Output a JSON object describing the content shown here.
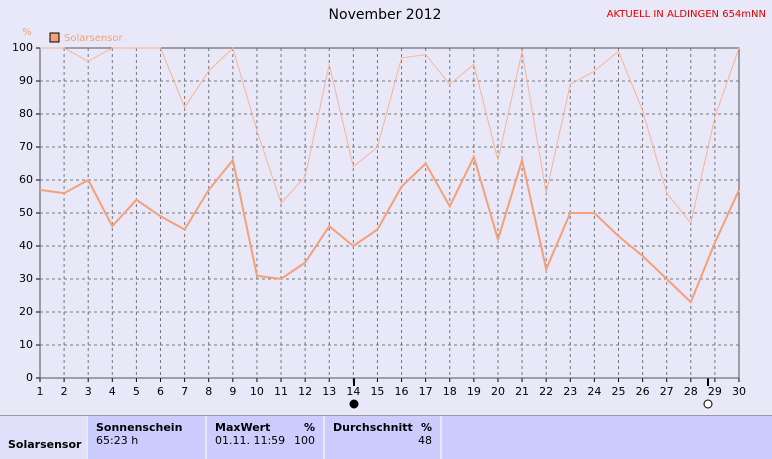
{
  "station_label": "AKTUELL IN ALDINGEN 654mNN",
  "chart_data": {
    "type": "line",
    "title": "November 2012",
    "y_label": "%",
    "x": [
      1,
      2,
      3,
      4,
      5,
      6,
      7,
      8,
      9,
      10,
      11,
      12,
      13,
      14,
      15,
      16,
      17,
      18,
      19,
      20,
      21,
      22,
      23,
      24,
      25,
      26,
      27,
      28,
      29,
      30
    ],
    "xlim": [
      1,
      30
    ],
    "xticks": [
      1,
      2,
      3,
      4,
      5,
      6,
      7,
      8,
      9,
      10,
      11,
      12,
      13,
      14,
      15,
      16,
      17,
      18,
      19,
      20,
      21,
      22,
      23,
      24,
      25,
      26,
      27,
      28,
      29,
      30
    ],
    "ylim": [
      0,
      100
    ],
    "yticks": [
      0,
      10,
      20,
      30,
      40,
      50,
      60,
      70,
      80,
      90,
      100
    ],
    "grid": true,
    "series": [
      {
        "name": "Solarsensor",
        "color": "#f4a078",
        "width": 2,
        "values": [
          57,
          56,
          60,
          46,
          54,
          49,
          45,
          57,
          66,
          31,
          30,
          35,
          46,
          40,
          45,
          58,
          65,
          52,
          67,
          42,
          66,
          33,
          50,
          50,
          43,
          37,
          30,
          23,
          41,
          57
        ]
      },
      {
        "color": "#f8b496",
        "width": 1,
        "values": [
          100,
          100,
          96,
          100,
          100,
          100,
          82,
          93,
          100,
          75,
          53,
          61,
          95,
          64,
          70,
          97,
          98,
          89,
          95,
          66,
          99,
          56,
          89,
          93,
          99,
          81,
          56,
          47,
          79,
          100
        ]
      }
    ]
  },
  "table": {
    "row_label": "Solarsensor",
    "columns": [
      {
        "header": "Sonnenschein",
        "value": "65:23 h"
      },
      {
        "header": "MaxWert",
        "unit": "%",
        "time": "01.11. 11:59",
        "value": "100"
      },
      {
        "header": "Durchschnitt",
        "unit": "%",
        "value": "48"
      }
    ]
  }
}
